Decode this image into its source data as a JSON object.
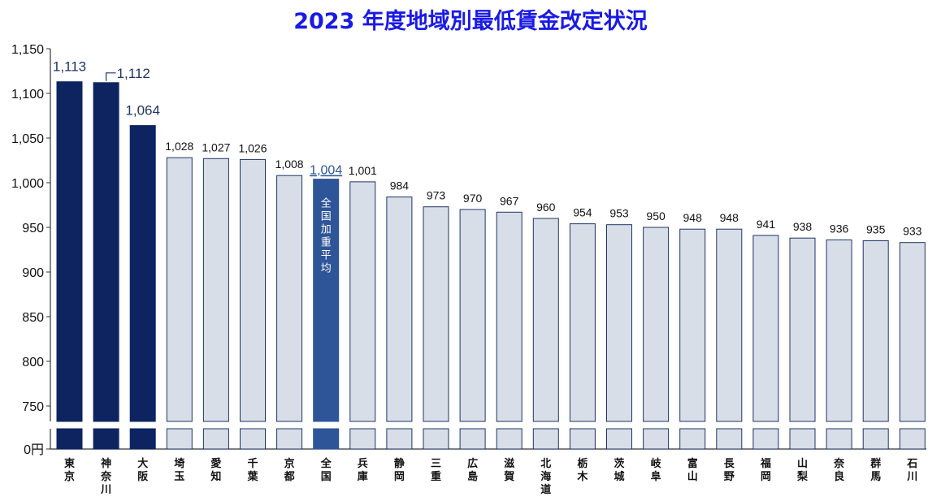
{
  "chart_data": {
    "type": "bar",
    "title": "2023 年度地域別最低賃金改定状況",
    "xlabel": "",
    "ylabel": "",
    "ylim": [
      725,
      1150
    ],
    "axis_break": true,
    "y_ticks": [
      "1,150",
      "1,100",
      "1,050",
      "1,000",
      "950",
      "900",
      "850",
      "800",
      "750",
      "0円"
    ],
    "categories": [
      "東京",
      "神奈川",
      "大阪",
      "埼玉",
      "愛知",
      "千葉",
      "京都",
      "全国",
      "兵庫",
      "静岡",
      "三重",
      "広島",
      "滋賀",
      "北海道",
      "栃木",
      "茨城",
      "岐阜",
      "富山",
      "長野",
      "福岡",
      "山梨",
      "奈良",
      "群馬",
      "石川"
    ],
    "values": [
      1113,
      1112,
      1064,
      1028,
      1027,
      1026,
      1008,
      1004,
      1001,
      984,
      973,
      970,
      967,
      960,
      954,
      953,
      950,
      948,
      948,
      941,
      938,
      936,
      935,
      933
    ],
    "value_labels": [
      "1,113",
      "1,112",
      "1,064",
      "1,028",
      "1,027",
      "1,026",
      "1,008",
      "1,004",
      "1,001",
      "984",
      "973",
      "970",
      "967",
      "960",
      "954",
      "953",
      "950",
      "948",
      "948",
      "941",
      "938",
      "936",
      "935",
      "933"
    ],
    "bar_styles": [
      "top",
      "top",
      "top",
      "normal",
      "normal",
      "normal",
      "normal",
      "average",
      "normal",
      "normal",
      "normal",
      "normal",
      "normal",
      "normal",
      "normal",
      "normal",
      "normal",
      "normal",
      "normal",
      "normal",
      "normal",
      "normal",
      "normal",
      "normal"
    ],
    "average_bar_label": "全国加重平均",
    "colors": {
      "top": "#0d2461",
      "average": "#2e5597",
      "normal": "#d8dee8",
      "normal_stroke": "#1f3466",
      "title": "#1a1ae6"
    },
    "grid": false
  }
}
